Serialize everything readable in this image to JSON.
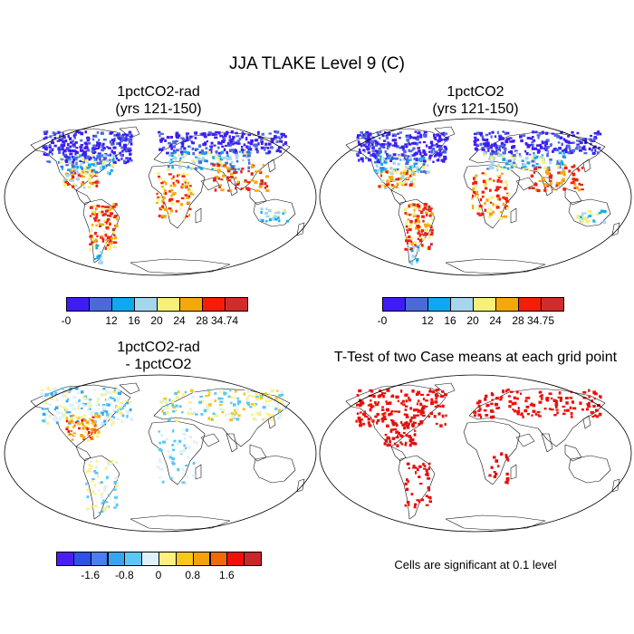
{
  "title": "JJA TLAKE Level 9 (C)",
  "panels": [
    {
      "id": "p1",
      "title": "1pctCO2-rad\n(yrs 121-150)"
    },
    {
      "id": "p2",
      "title": "1pctCO2\n(yrs 121-150)"
    },
    {
      "id": "p3",
      "title": "1pctCO2-rad\n- 1pctCO2"
    },
    {
      "id": "p4",
      "title": "T-Test of two Case means at each grid point"
    }
  ],
  "colorbars": {
    "top_left": {
      "colors": [
        "#3d1cf5",
        "#4a6ad8",
        "#0ea8f0",
        "#a6d6ee",
        "#f6ef7a",
        "#f4a90a",
        "#f51d08",
        "#d02d2a"
      ],
      "labels": [
        "-0",
        "12",
        "16",
        "20",
        "24",
        "28",
        "34.74"
      ]
    },
    "top_right": {
      "colors": [
        "#3d1cf5",
        "#4a6ad8",
        "#0ea8f0",
        "#a6d6ee",
        "#f6ef7a",
        "#f4a90a",
        "#f51d08",
        "#d02d2a"
      ],
      "labels": [
        "-0",
        "12",
        "16",
        "20",
        "24",
        "28",
        "34.75"
      ]
    },
    "bottom_left": {
      "colors": [
        "#4b1ef0",
        "#2e52e8",
        "#4c7ef0",
        "#37a6ee",
        "#5bc8f2",
        "#dff1f8",
        "#fef080",
        "#f6c81a",
        "#f4a010",
        "#f06a08",
        "#f20f05",
        "#c8282a"
      ],
      "labels": [
        "-1.6",
        "-0.8",
        "0",
        "0.8",
        "1.6"
      ]
    }
  },
  "significance_note": "Cells are significant at 0.1 level"
}
